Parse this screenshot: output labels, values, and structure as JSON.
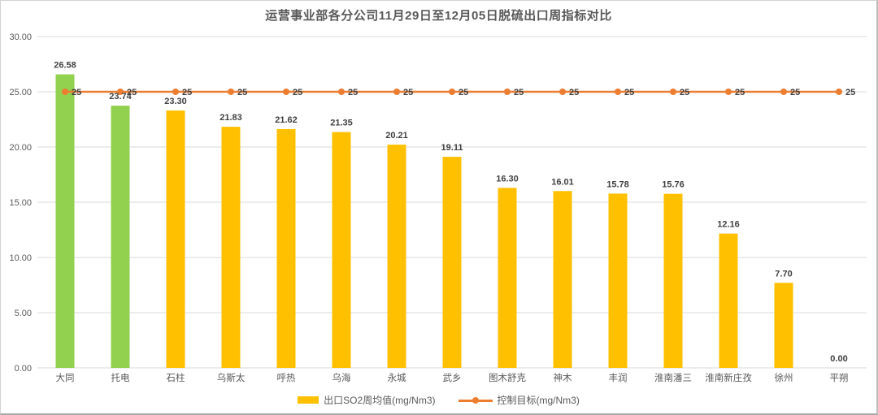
{
  "chart_data": {
    "type": "bar",
    "title": "运营事业部各分公司11月29日至12月05日脱硫出口周指标对比",
    "categories": [
      "大同",
      "托电",
      "石柱",
      "乌斯太",
      "呼热",
      "乌海",
      "永城",
      "武乡",
      "图木舒克",
      "神木",
      "丰润",
      "淮南潘三",
      "淮南新庄孜",
      "徐州",
      "平朔"
    ],
    "series": [
      {
        "name": "出口SO2周均值(mg/Nm3)",
        "type": "bar",
        "values": [
          26.58,
          23.74,
          23.3,
          21.83,
          21.62,
          21.35,
          20.21,
          19.11,
          16.3,
          16.01,
          15.78,
          15.76,
          12.16,
          7.7,
          0.0
        ],
        "labels": [
          "26.58",
          "23.74",
          "23.30",
          "21.83",
          "21.62",
          "21.35",
          "20.21",
          "19.11",
          "16.30",
          "16.01",
          "15.78",
          "15.76",
          "12.16",
          "7.70",
          "0.00"
        ],
        "colors": [
          "#92D050",
          "#92D050",
          "#FFC000",
          "#FFC000",
          "#FFC000",
          "#FFC000",
          "#FFC000",
          "#FFC000",
          "#FFC000",
          "#FFC000",
          "#FFC000",
          "#FFC000",
          "#FFC000",
          "#FFC000",
          "#FFC000"
        ]
      },
      {
        "name": "控制目标(mg/Nm3)",
        "type": "line",
        "values": [
          25,
          25,
          25,
          25,
          25,
          25,
          25,
          25,
          25,
          25,
          25,
          25,
          25,
          25,
          25
        ],
        "labels": [
          "25",
          "25",
          "25",
          "25",
          "25",
          "25",
          "25",
          "25",
          "25",
          "25",
          "25",
          "25",
          "25",
          "25",
          "25"
        ],
        "color": "#ED7D31",
        "marker": "circle"
      }
    ],
    "ylim": [
      0,
      30
    ],
    "ytick_step": 5,
    "ytick_labels": [
      "0.00",
      "5.00",
      "10.00",
      "15.00",
      "20.00",
      "25.00",
      "30.00"
    ],
    "grid": true,
    "legend_position": "bottom"
  },
  "style_colors": {
    "grid": "#D9D9D9",
    "axis_text": "#595959",
    "data_label": "#404040",
    "title": "#595959",
    "background": "#FFFFFF"
  }
}
